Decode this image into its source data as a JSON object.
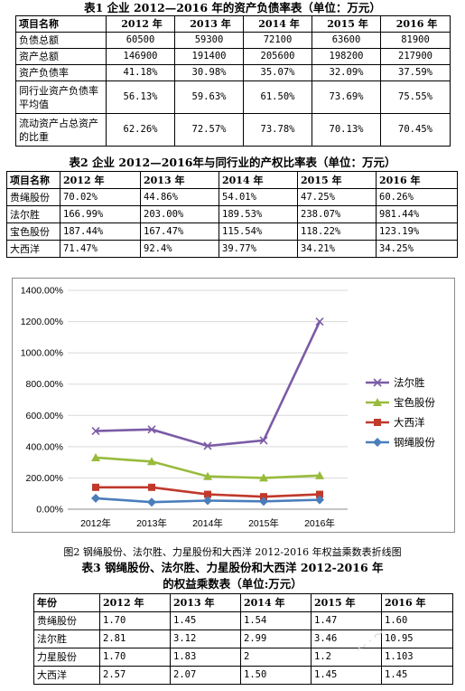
{
  "table1": {
    "caption": "表1 企业 2012—2016 年的资产负债率表（单位：万元）",
    "headers": [
      "项目名称",
      "2012 年",
      "2013 年",
      "2014 年",
      "2015 年",
      "2016 年"
    ],
    "rows": [
      [
        "负债总额",
        "60500",
        "59300",
        "72100",
        "63600",
        "81900"
      ],
      [
        "资产总额",
        "146900",
        "191400",
        "205600",
        "198200",
        "217900"
      ],
      [
        "资产负债率",
        "41.18%",
        "30.98%",
        "35.07%",
        "32.09%",
        "37.59%"
      ],
      [
        "同行业资产负债率平均值",
        "56.13%",
        "59.63%",
        "61.50%",
        "73.69%",
        "75.55%"
      ],
      [
        "流动资产占总资产的比重",
        "62.26%",
        "72.57%",
        "73.78%",
        "70.13%",
        "70.45%"
      ]
    ]
  },
  "table2": {
    "caption": "表2 企业 2012—2016年与同行业的产权比率表（单位：万元）",
    "headers": [
      "项目名称",
      "2012 年",
      "2013 年",
      "2014 年",
      "2015 年",
      "2016 年"
    ],
    "rows": [
      [
        "贵绳股份",
        "70.02%",
        "44.86%",
        "54.01%",
        "47.25%",
        "60.26%"
      ],
      [
        "法尔胜",
        "166.99%",
        "203.00%",
        "189.53%",
        "238.07%",
        "981.44%"
      ],
      [
        "宝色股份",
        "187.44%",
        "167.47%",
        "115.54%",
        "118.22%",
        "123.19%"
      ],
      [
        "大西洋",
        "71.47%",
        "92.4%",
        "39.77%",
        "34.21%",
        "34.25%"
      ]
    ]
  },
  "chart_data": {
    "type": "line",
    "categories": [
      "2012年",
      "2013年",
      "2014年",
      "2015年",
      "2016年"
    ],
    "ytick_labels": [
      "0.00%",
      "200.00%",
      "400.00%",
      "600.00%",
      "800.00%",
      "1000.00%",
      "1200.00%",
      "1400.00%"
    ],
    "ylim": [
      0,
      1400
    ],
    "grid": true,
    "legend_position": "right",
    "series": [
      {
        "name": "法尔胜",
        "color": "#7b5ba6",
        "marker": "x",
        "values": [
          500,
          510,
          405,
          440,
          1200
        ]
      },
      {
        "name": "宝色股份",
        "color": "#98bb3c",
        "marker": "triangle",
        "values": [
          330,
          305,
          210,
          200,
          215
        ]
      },
      {
        "name": "大西洋",
        "color": "#c0392b",
        "marker": "square",
        "values": [
          140,
          140,
          95,
          80,
          95
        ]
      },
      {
        "name": "钢绳股份",
        "color": "#4a7ebb",
        "marker": "diamond",
        "values": [
          70,
          45,
          55,
          50,
          60
        ]
      }
    ]
  },
  "figure_caption": "图2 钢绳股份、法尔胜、力星股份和大西洋 2012-2016 年权益乘数表折线图",
  "table3": {
    "caption_line1": "表3 钢绳股份、法尔胜、力星股份和大西洋 2012-2016 年",
    "caption_line2": "的权益乘数表（单位:万元）",
    "headers": [
      "年份",
      "2012 年",
      "2013 年",
      "2014 年",
      "2015 年",
      "2016 年"
    ],
    "rows": [
      [
        "贵绳股份",
        "1.70",
        "1.45",
        "1.54",
        "1.47",
        "1.60"
      ],
      [
        "法尔胜",
        "2.81",
        "3.12",
        "2.99",
        "3.46",
        "10.95"
      ],
      [
        "力星股份",
        "1.70",
        "1.83",
        "2",
        "1.2",
        "1.103"
      ],
      [
        "大西洋",
        "2.57",
        "2.07",
        "1.50",
        "1.45",
        "1.45"
      ]
    ]
  }
}
